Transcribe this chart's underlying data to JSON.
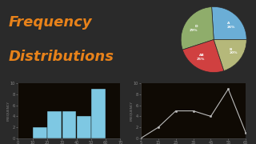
{
  "bg_color": "#2a2a2a",
  "bottom_bg": "#1a1008",
  "title_line1": "Frequency",
  "title_line2": "Distributions",
  "title_color": "#e8821a",
  "title_fontsize": 13,
  "title_weight": "bold",
  "hist_bar_color": "#7ec8e3",
  "hist_x": [
    0,
    10,
    20,
    30,
    40,
    50,
    60,
    70
  ],
  "hist_heights": [
    0,
    2,
    5,
    5,
    4,
    9,
    0,
    0
  ],
  "hist_ylabel": "FREQUENCY",
  "hist_xticks": [
    0,
    10,
    20,
    30,
    40,
    50,
    60,
    70
  ],
  "hist_yticks": [
    0,
    2,
    4,
    6,
    8,
    10
  ],
  "line_x": [
    5,
    15,
    25,
    35,
    45,
    55,
    65
  ],
  "line_y": [
    0,
    2,
    5,
    5,
    4,
    9,
    1
  ],
  "line_color": "#bbbbbb",
  "line_marker": "o",
  "line_ylabel": "FREQUENCY",
  "line_xticks": [
    5,
    15,
    25,
    35,
    45,
    55,
    65
  ],
  "line_yticks": [
    0,
    2,
    4,
    6,
    8,
    10
  ],
  "pie_sizes": [
    26,
    29,
    25,
    20
  ],
  "pie_labels": [
    "A\n26%",
    "D\n29%",
    "AB\n25%",
    "B\n20%"
  ],
  "pie_colors": [
    "#6baed6",
    "#8fad6b",
    "#d04040",
    "#b5b87a"
  ],
  "pie_startangle": 0,
  "tick_color": "#888888",
  "tick_fontsize": 3.5,
  "axis_label_fontsize": 3.0,
  "axis_label_color": "#888888",
  "separator_color": "#555555"
}
